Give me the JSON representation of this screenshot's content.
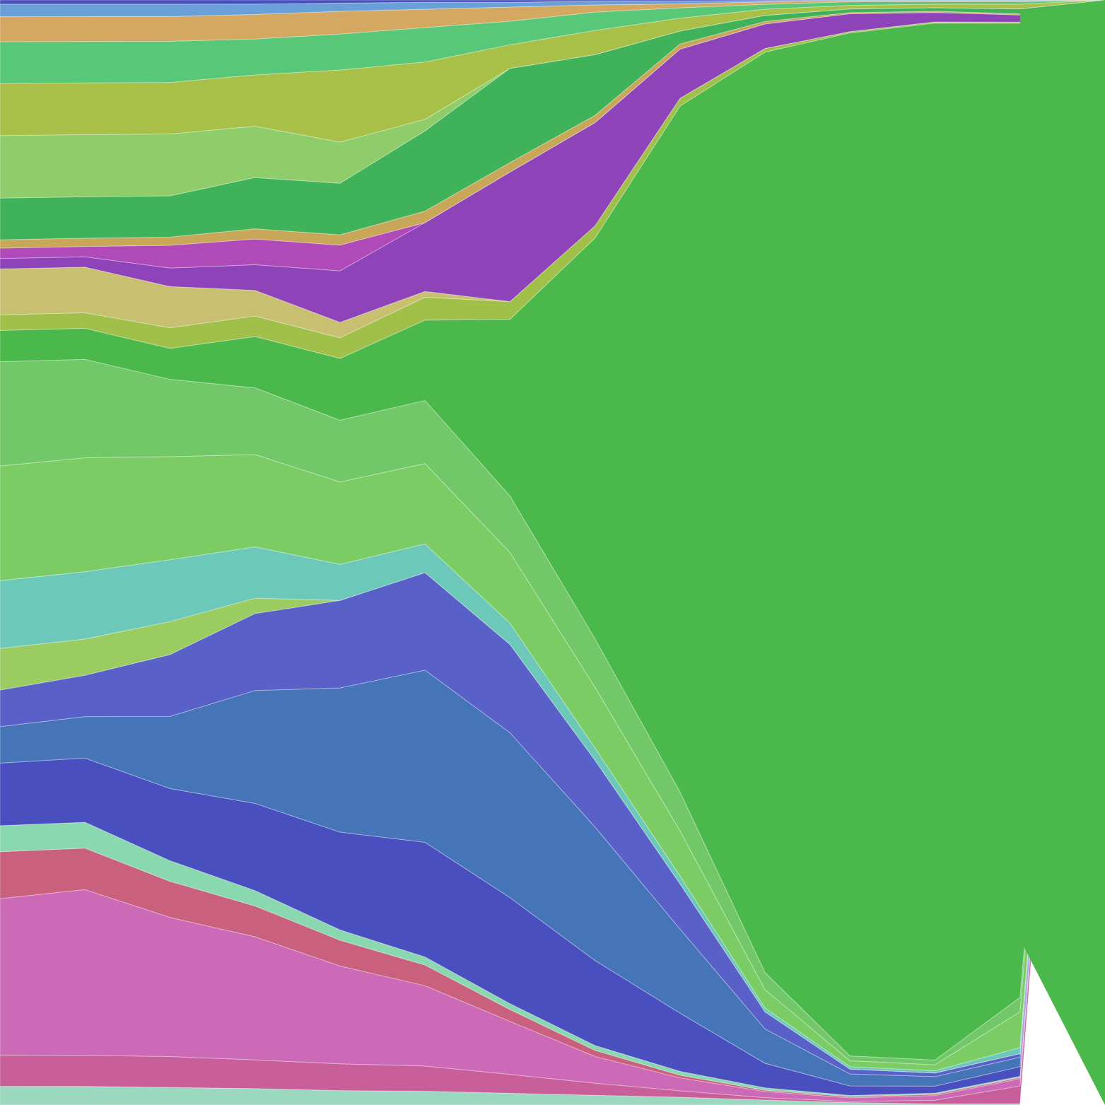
{
  "chart_data": {
    "type": "area",
    "stacked": true,
    "normalized": true,
    "axes_visible": false,
    "legend": "none",
    "grid": false,
    "ylim": [
      0,
      1
    ],
    "x": [
      0,
      1,
      2,
      3,
      4,
      5,
      6,
      7,
      8,
      9,
      10,
      11,
      12,
      13
    ],
    "series": [
      {
        "color": "#9ad8c0",
        "values": [
          0.018,
          0.018,
          0.017,
          0.016,
          0.014,
          0.012,
          0.01,
          0.008,
          0.006,
          0.004,
          0.002,
          0.001,
          0.001,
          0.0
        ]
      },
      {
        "color": "#c95f9a",
        "values": [
          0.03,
          0.03,
          0.03,
          0.028,
          0.026,
          0.022,
          0.016,
          0.01,
          0.005,
          0.002,
          0.001,
          0.003,
          0.015,
          0.0
        ]
      },
      {
        "color": "#cc6ab8",
        "values": [
          0.15,
          0.16,
          0.135,
          0.12,
          0.095,
          0.07,
          0.045,
          0.022,
          0.01,
          0.005,
          0.003,
          0.004,
          0.006,
          0.0
        ]
      },
      {
        "color": "#c8607e",
        "values": [
          0.045,
          0.04,
          0.035,
          0.03,
          0.025,
          0.018,
          0.01,
          0.005,
          0.002,
          0.001,
          0.001,
          0.001,
          0.001,
          0.0
        ]
      },
      {
        "color": "#8ad8b0",
        "values": [
          0.025,
          0.025,
          0.02,
          0.015,
          0.01,
          0.007,
          0.005,
          0.004,
          0.003,
          0.002,
          0.001,
          0.001,
          0.001,
          0.0
        ]
      },
      {
        "color": "#4a4fc0",
        "values": [
          0.06,
          0.062,
          0.07,
          0.085,
          0.095,
          0.1,
          0.09,
          0.07,
          0.045,
          0.02,
          0.008,
          0.006,
          0.008,
          0.0
        ]
      },
      {
        "color": "#4575b8",
        "values": [
          0.035,
          0.04,
          0.07,
          0.11,
          0.14,
          0.15,
          0.14,
          0.11,
          0.065,
          0.028,
          0.01,
          0.008,
          0.008,
          0.0
        ]
      },
      {
        "color": "#5960c8",
        "values": [
          0.035,
          0.04,
          0.06,
          0.075,
          0.085,
          0.085,
          0.075,
          0.055,
          0.035,
          0.014,
          0.004,
          0.003,
          0.003,
          0.0
        ]
      },
      {
        "color": "#9bcc62",
        "values": [
          0.04,
          0.035,
          0.032,
          0.015,
          0.0,
          0.0,
          0.0,
          0.0,
          0.0,
          0.0,
          0.0,
          0.0,
          0.0,
          0.0
        ]
      },
      {
        "color": "#6cc8b8",
        "values": [
          0.065,
          0.065,
          0.06,
          0.05,
          0.035,
          0.025,
          0.018,
          0.01,
          0.006,
          0.003,
          0.002,
          0.002,
          0.005,
          0.0
        ]
      },
      {
        "color": "#7ccc66",
        "values": [
          0.11,
          0.11,
          0.1,
          0.09,
          0.08,
          0.07,
          0.06,
          0.05,
          0.035,
          0.015,
          0.005,
          0.005,
          0.03,
          0.0
        ]
      },
      {
        "color": "#72c868",
        "values": [
          0.1,
          0.095,
          0.075,
          0.065,
          0.06,
          0.055,
          0.048,
          0.04,
          0.03,
          0.014,
          0.004,
          0.004,
          0.012,
          0.0
        ]
      },
      {
        "color": "#4ab84a",
        "values": [
          0.03,
          0.03,
          0.03,
          0.05,
          0.06,
          0.07,
          0.15,
          0.33,
          0.53,
          0.75,
          0.856,
          0.876,
          0.815,
          0.0
        ]
      },
      {
        "color": "#a0c04a",
        "values": [
          0.015,
          0.015,
          0.02,
          0.02,
          0.02,
          0.02,
          0.015,
          0.01,
          0.006,
          0.003,
          0.001,
          0.001,
          0.001,
          0.0
        ]
      },
      {
        "color": "#c8c070",
        "values": [
          0.044,
          0.044,
          0.04,
          0.025,
          0.015,
          0.005,
          0.0,
          0.0,
          0.0,
          0.0,
          0.0,
          0.0,
          0.0,
          0.0
        ]
      },
      {
        "color": "#8e44b8",
        "values": [
          0.01,
          0.01,
          0.018,
          0.025,
          0.05,
          0.06,
          0.11,
          0.085,
          0.038,
          0.02,
          0.015,
          0.008,
          0.006,
          0.0
        ]
      },
      {
        "color": "#b04ab8",
        "values": [
          0.01,
          0.01,
          0.022,
          0.025,
          0.025,
          0.0,
          0.0,
          0.0,
          0.0,
          0.0,
          0.0,
          0.0,
          0.0,
          0.0
        ]
      },
      {
        "color": "#c8a858",
        "values": [
          0.008,
          0.008,
          0.008,
          0.01,
          0.01,
          0.01,
          0.008,
          0.006,
          0.004,
          0.002,
          0.001,
          0.001,
          0.001,
          0.0
        ]
      },
      {
        "color": "#3fb25a",
        "values": [
          0.04,
          0.04,
          0.04,
          0.05,
          0.05,
          0.07,
          0.08,
          0.05,
          0.01,
          0.005,
          0.003,
          0.003,
          0.004,
          0.0
        ]
      },
      {
        "color": "#8fcc6a",
        "values": [
          0.06,
          0.06,
          0.06,
          0.05,
          0.04,
          0.01,
          0.0,
          0.0,
          0.0,
          0.0,
          0.0,
          0.0,
          0.0,
          0.0
        ]
      },
      {
        "color": "#a8c048",
        "values": [
          0.05,
          0.05,
          0.05,
          0.05,
          0.07,
          0.05,
          0.02,
          0.02,
          0.01,
          0.005,
          0.003,
          0.003,
          0.004,
          0.0
        ]
      },
      {
        "color": "#58c878",
        "values": [
          0.04,
          0.04,
          0.04,
          0.035,
          0.035,
          0.03,
          0.02,
          0.015,
          0.008,
          0.004,
          0.003,
          0.002,
          0.002,
          0.0
        ]
      },
      {
        "color": "#d4a860",
        "values": [
          0.024,
          0.024,
          0.024,
          0.024,
          0.022,
          0.016,
          0.012,
          0.006,
          0.003,
          0.002,
          0.001,
          0.001,
          0.001,
          0.0
        ]
      },
      {
        "color": "#6aa0d8",
        "values": [
          0.012,
          0.012,
          0.012,
          0.01,
          0.008,
          0.006,
          0.004,
          0.003,
          0.002,
          0.001,
          0.0005,
          0.0005,
          0.0005,
          0.0
        ]
      },
      {
        "color": "#4a4fc0",
        "values": [
          0.004,
          0.004,
          0.004,
          0.004,
          0.003,
          0.002,
          0.002,
          0.001,
          0.001,
          0.0005,
          0.0,
          0.0,
          0.0,
          0.0
        ]
      }
    ]
  }
}
